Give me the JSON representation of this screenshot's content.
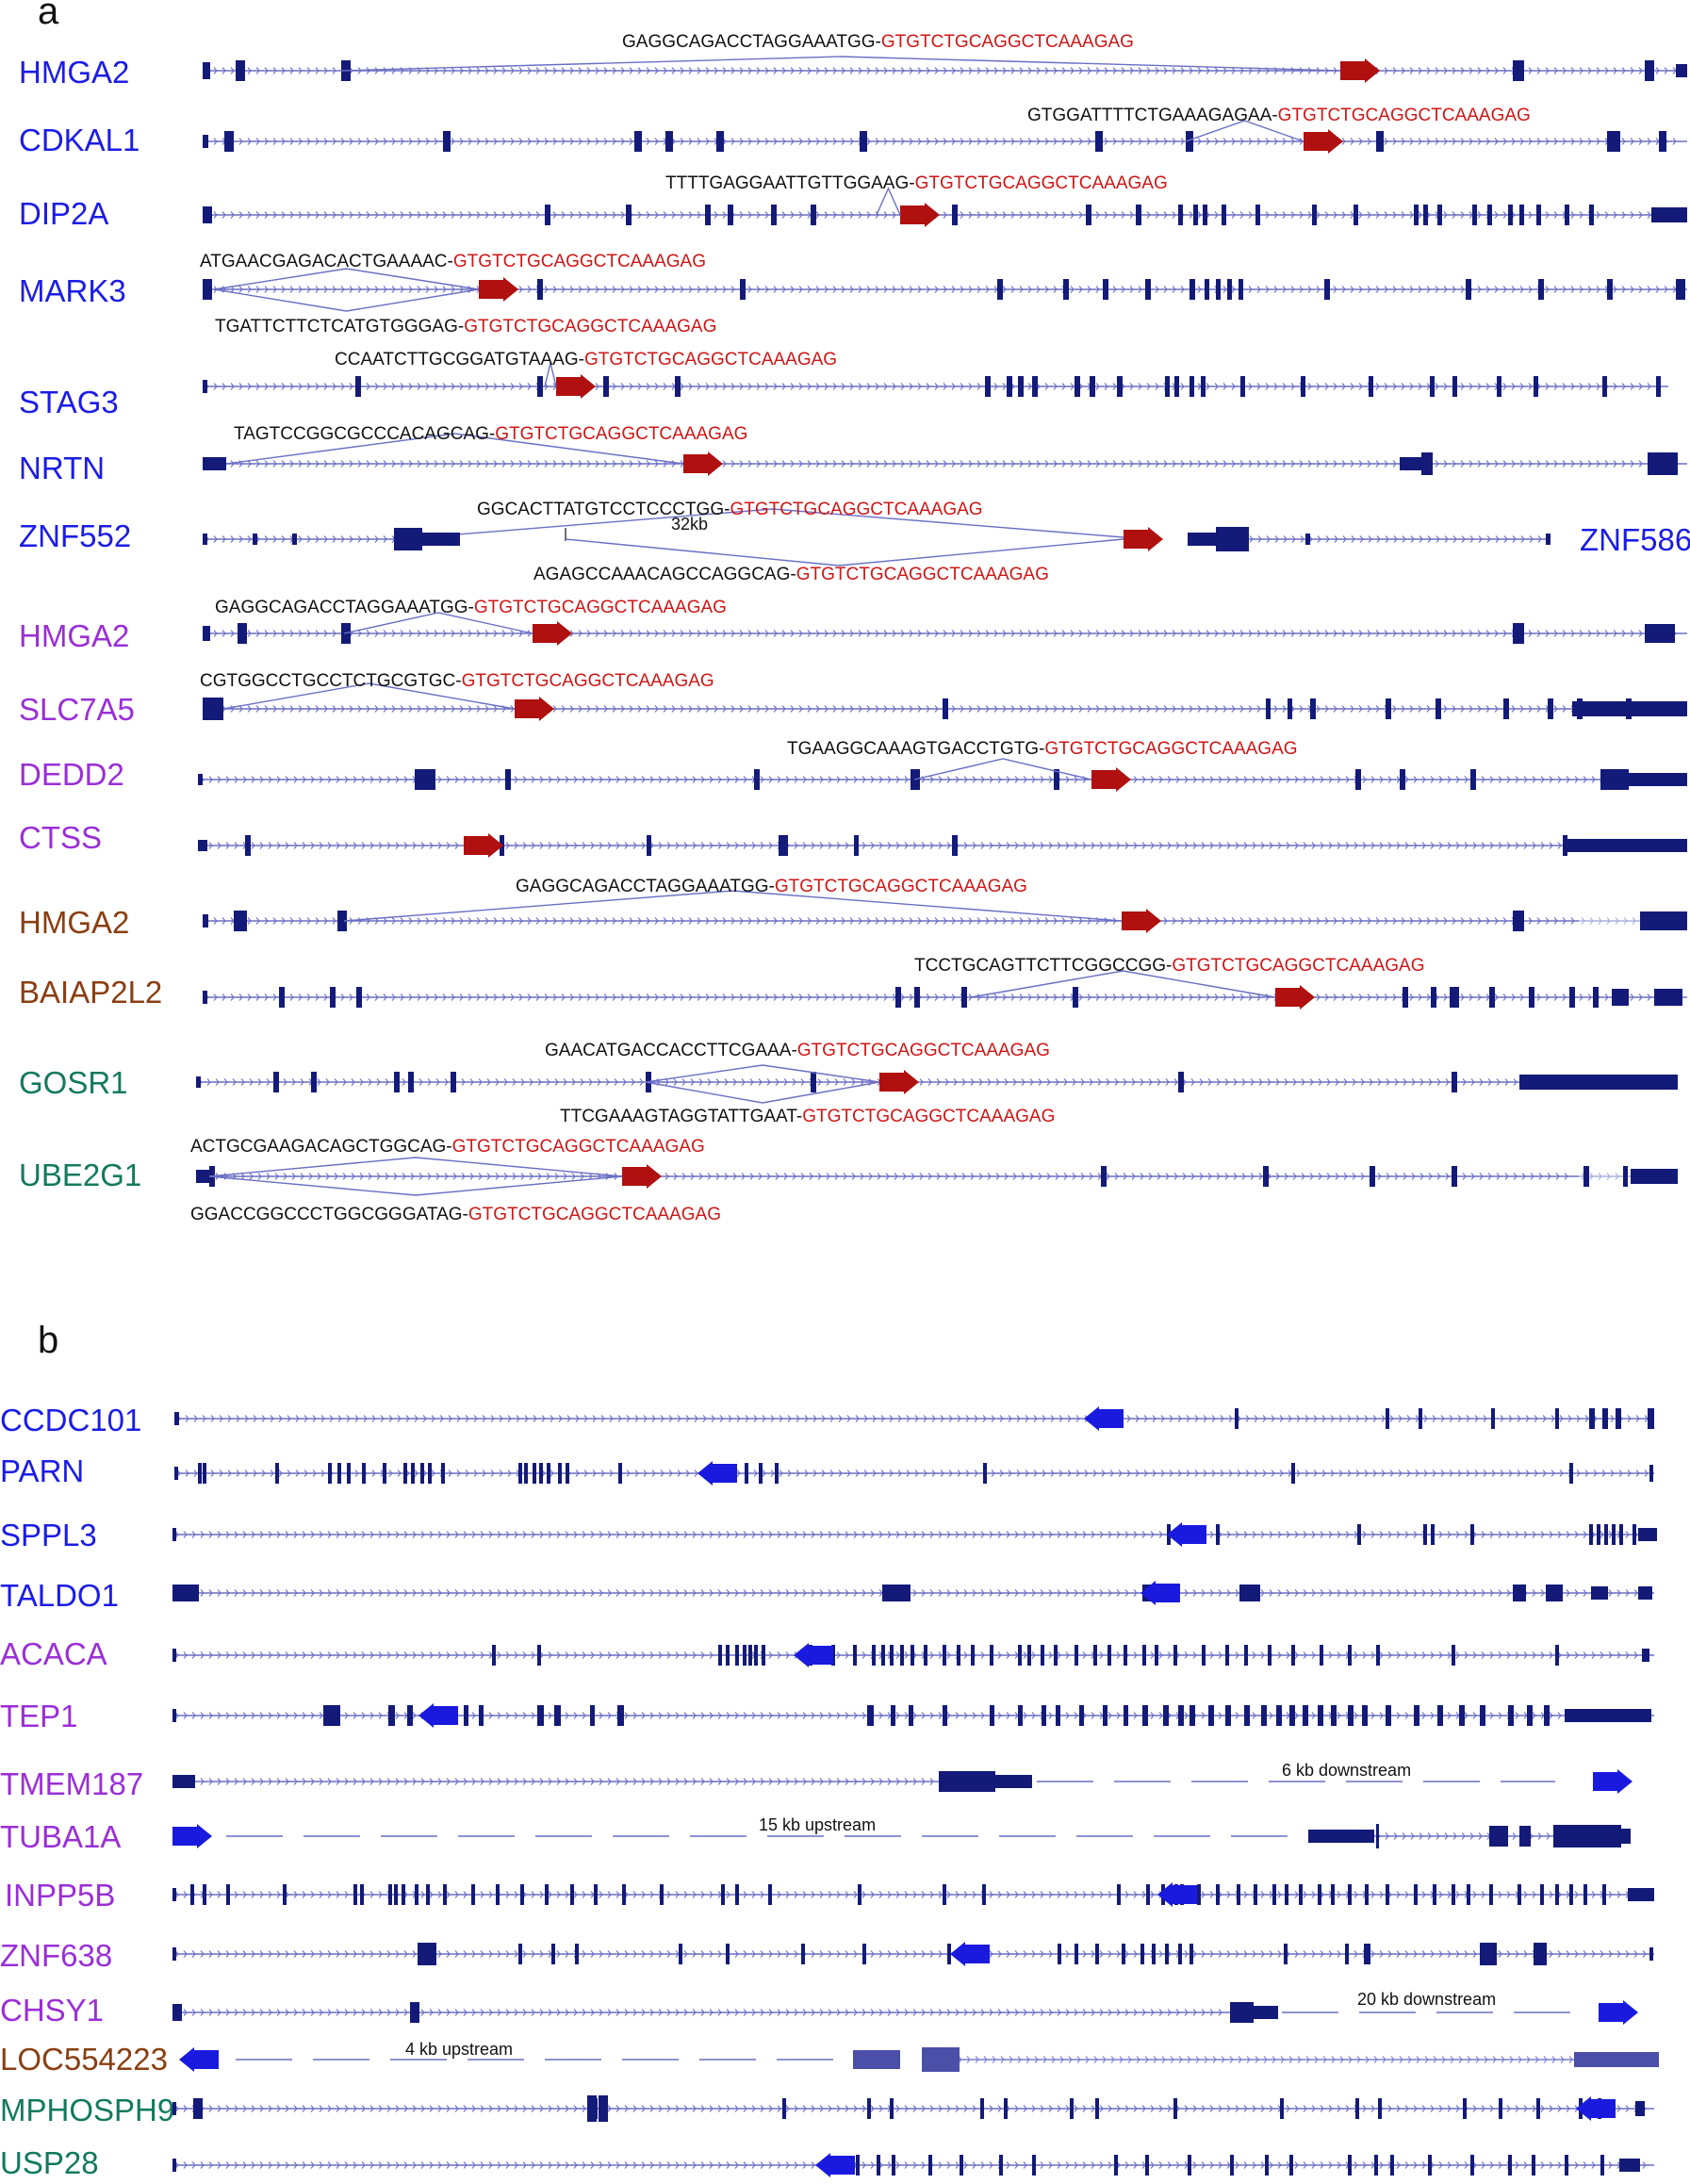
{
  "figure": {
    "colors": {
      "exon": "#141a78",
      "intron": "#6a6fc4",
      "fusion_arrow_a": "#b01010",
      "fusion_arrow_b": "#1a1adf",
      "seq_black": "#111111",
      "seq_red": "#d01515",
      "label_blue": "#1c1ce6",
      "label_purple": "#9a2fd6",
      "label_brown": "#8a3f12",
      "label_green": "#137a5e",
      "utr_light": "#4b4fa8"
    },
    "red_sequence": "GTGTCTGCAGGCTCAAAGAG",
    "panel_a": {
      "letter": "a",
      "rows": [
        {
          "gene": "HMGA2",
          "color": "label_blue",
          "seq_above": "GAGGCAGACCTAGGAAATGG-"
        },
        {
          "gene": "CDKAL1",
          "color": "label_blue",
          "seq_above": "GTGGATTTTCTGAAAGAGAA-"
        },
        {
          "gene": "DIP2A",
          "color": "label_blue",
          "seq_above": "TTTTGAGGAATTGTTGGAAG-"
        },
        {
          "gene": "MARK3",
          "color": "label_blue",
          "seq_above": "ATGAACGAGACACTGAAAAC-",
          "seq_below": "TGATTCTTCTCATGTGGGAG-"
        },
        {
          "gene": "STAG3",
          "color": "label_blue",
          "seq_above": "CCAATCTTGCGGATGTAAAG-"
        },
        {
          "gene": "NRTN",
          "color": "label_blue",
          "seq_above": "TAGTCCGGCGCCCACAGCAG-"
        },
        {
          "gene": "ZNF552",
          "color": "label_blue",
          "partner": "ZNF586",
          "distance": "32kb",
          "seq_above": "GGCACTTATGTCCTCCCTGG-",
          "seq_below": "AGAGCCAAACAGCCAGGCAG-"
        },
        {
          "gene": "HMGA2",
          "color": "label_purple",
          "seq_above": "GAGGCAGACCTAGGAAATGG-"
        },
        {
          "gene": "SLC7A5",
          "color": "label_purple",
          "seq_above": "CGTGGCCTGCCTCTGCGTGC-"
        },
        {
          "gene": "DEDD2",
          "color": "label_purple",
          "seq_above": "TGAAGGCAAAGTGACCTGTG-"
        },
        {
          "gene": "CTSS",
          "color": "label_purple"
        },
        {
          "gene": "HMGA2",
          "color": "label_brown",
          "seq_above": "GAGGCAGACCTAGGAAATGG-"
        },
        {
          "gene": "BAIAP2L2",
          "color": "label_brown",
          "seq_above": "TCCTGCAGTTCTTCGGCCGG-"
        },
        {
          "gene": "GOSR1",
          "color": "label_green",
          "seq_above": "GAACATGACCACCTTCGAAA-",
          "seq_below": "TTCGAAAGTAGGTATTGAAT-"
        },
        {
          "gene": "UBE2G1",
          "color": "label_green",
          "seq_above": "ACTGCGAAGACAGCTGGCAG-",
          "seq_below": "GGACCGGCCCTGGCGGGATAG-"
        }
      ]
    },
    "panel_b": {
      "letter": "b",
      "rows": [
        {
          "gene": "CCDC101",
          "color": "label_blue"
        },
        {
          "gene": "PARN",
          "color": "label_blue"
        },
        {
          "gene": "SPPL3",
          "color": "label_blue"
        },
        {
          "gene": "TALDO1",
          "color": "label_blue"
        },
        {
          "gene": "ACACA",
          "color": "label_purple"
        },
        {
          "gene": "TEP1",
          "color": "label_purple"
        },
        {
          "gene": "TMEM187",
          "color": "label_purple",
          "note": "6 kb downstream"
        },
        {
          "gene": "TUBA1A",
          "color": "label_purple",
          "note": "15 kb upstream"
        },
        {
          "gene": "INPP5B",
          "color": "label_purple"
        },
        {
          "gene": "ZNF638",
          "color": "label_purple"
        },
        {
          "gene": "CHSY1",
          "color": "label_purple",
          "note": "20 kb downstream"
        },
        {
          "gene": "LOC554223",
          "color": "label_brown",
          "note": "4 kb upstream"
        },
        {
          "gene": "MPHOSPH9",
          "color": "label_green"
        },
        {
          "gene": "USP28",
          "color": "label_green"
        }
      ]
    }
  }
}
